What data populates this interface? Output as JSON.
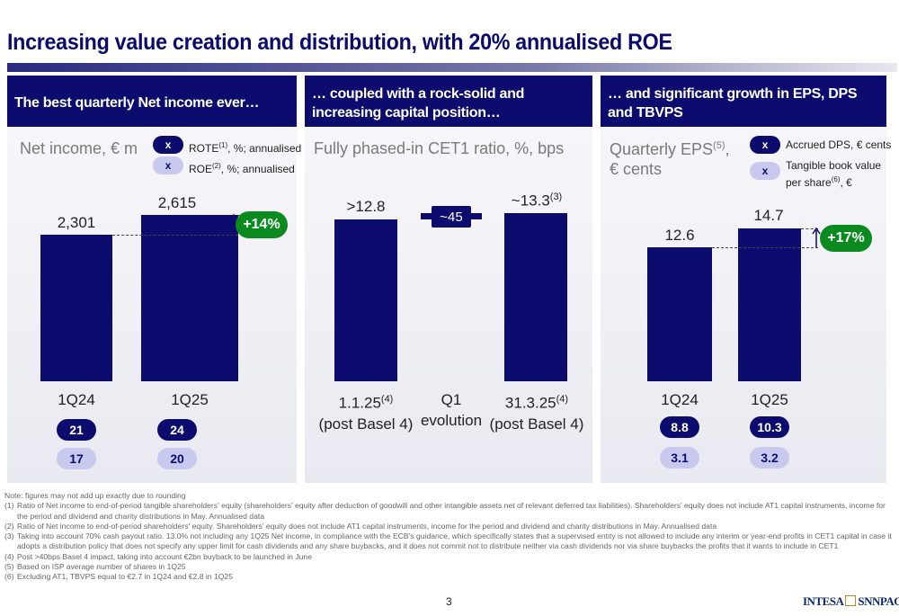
{
  "title": "Increasing value creation and distribution, with 20% annualised ROE",
  "panels": [
    {
      "header": "The best quarterly Net income ever…",
      "subtitle": "Net income, € m",
      "legend": [
        {
          "marker": "x",
          "text": "ROTE",
          "sup": "(1)",
          "rest": ", %; annualised"
        },
        {
          "marker": "x",
          "text": "ROE",
          "sup": "(2)",
          "rest": ", %; annualised"
        }
      ],
      "growth": "+14%",
      "bottom_rows": [
        [
          "21",
          "24"
        ],
        [
          "17",
          "20"
        ]
      ]
    },
    {
      "header": "… coupled with a rock-solid and increasing capital position…",
      "subtitle": "Fully phased-in CET1 ratio, %, bps"
    },
    {
      "header": "… and significant growth in EPS, DPS and TBVPS",
      "subtitle_line1": "Quarterly EPS",
      "subtitle_sup": "(5)",
      "subtitle_line1_end": ",",
      "subtitle_line2": "€ cents",
      "legend": [
        {
          "marker": "x",
          "text": "Accrued DPS, € cents"
        },
        {
          "marker": "x",
          "text": "Tangible book value",
          "text2": "per share",
          "sup": "(6)",
          "rest": ", €"
        }
      ],
      "growth": "+17%",
      "bottom_rows": [
        [
          "8.8",
          "10.3"
        ],
        [
          "3.1",
          "3.2"
        ]
      ]
    }
  ],
  "chart_data": [
    {
      "type": "bar",
      "title": "Net income, € m",
      "categories": [
        "1Q24",
        "1Q25"
      ],
      "values": [
        2301,
        2615
      ],
      "value_labels": [
        "2,301",
        "2,615"
      ],
      "series": [
        {
          "name": "ROTE, %; annualised",
          "values": [
            21,
            24
          ]
        },
        {
          "name": "ROE, %; annualised",
          "values": [
            17,
            20
          ]
        }
      ],
      "annotation": "+14%"
    },
    {
      "type": "bar",
      "title": "Fully phased-in CET1 ratio, %, bps",
      "categories": [
        "1.1.25(4) (post Basel 4)",
        "Q1 evolution",
        "31.3.25(4) (post Basel 4)"
      ],
      "values": [
        12.8,
        0.45,
        13.3
      ],
      "value_labels": [
        ">12.8",
        "~45",
        "~13.3(3)"
      ]
    },
    {
      "type": "bar",
      "title": "Quarterly EPS(5), € cents",
      "categories": [
        "1Q24",
        "1Q25"
      ],
      "values": [
        12.6,
        14.7
      ],
      "value_labels": [
        "12.6",
        "14.7"
      ],
      "series": [
        {
          "name": "Accrued DPS, € cents",
          "values": [
            8.8,
            10.3
          ]
        },
        {
          "name": "Tangible book value per share(6), €",
          "values": [
            3.1,
            3.2
          ]
        }
      ],
      "annotation": "+17%"
    }
  ],
  "cet1_labels": {
    "v1": ">12.8",
    "delta": "~45",
    "v2": "~13.3",
    "v2_sup": "(3)",
    "cat1_a": "1.1.25",
    "cat1_sup": "(4)",
    "cat1_b": "(post Basel 4)",
    "cat2_a": "Q1",
    "cat2_b": "evolution",
    "cat3_a": "31.3.25",
    "cat3_sup": "(4)",
    "cat3_b": "(post Basel 4)"
  },
  "ni_labels": {
    "v1": "2,301",
    "v2": "2,615",
    "c1": "1Q24",
    "c2": "1Q25"
  },
  "eps_labels": {
    "v1": "12.6",
    "v2": "14.7",
    "c1": "1Q24",
    "c2": "1Q25"
  },
  "notes": [
    {
      "n": "",
      "t": "Note: figures may not add up exactly due to rounding"
    },
    {
      "n": "(1)",
      "t": "Ratio of Net income to end-of-period tangible shareholders' equity (shareholders' equity after deduction of goodwill and other intangible assets net of relevant deferred tax liabilities). Shareholders' equity does not include AT1 capital instruments, income for the period and dividend and charity distributions in May. Annualised data"
    },
    {
      "n": "(2)",
      "t": "Ratio of Net income to end-of-period shareholders' equity. Shareholders' equity does not include AT1 capital instruments, income for the period and dividend and charity distributions in May. Annualised data"
    },
    {
      "n": "(3)",
      "t": "Taking into account 70% cash payout ratio. 13.0% not including any 1Q25 Net income, in compliance with the ECB's guidance, which specifically states that a supervised entity is not allowed to include any interim or year-end profits in CET1 capital in case it adopts a distribution policy that does not specify any upper limit for cash dividends and any share buybacks, and it does not commit not to distribute neither via cash dividends nor via share buybacks the profits that it wants to include in CET1"
    },
    {
      "n": "(4)",
      "t": "Post >40bps Basel 4 impact, taking into account €2bn buyback to be launched in June"
    },
    {
      "n": "(5)",
      "t": "Based on ISP average number of shares in 1Q25"
    },
    {
      "n": "(6)",
      "t": "Excluding AT1, TBVPS equal to €2.7 in 1Q24 and €2.8 in 1Q25"
    }
  ],
  "page_number": "3",
  "logo_left": "INTESA",
  "logo_right": "SNNPAOLO",
  "colors": {
    "navy": "#0c0c6e",
    "light_pill": "#c9c9ef",
    "green": "#0b8a1f"
  }
}
